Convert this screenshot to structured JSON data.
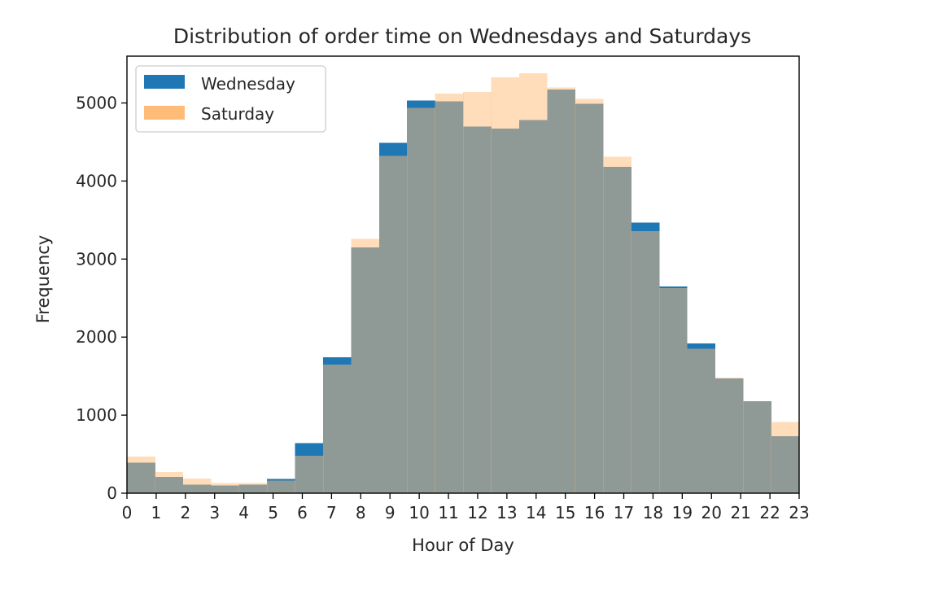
{
  "chart_data": {
    "type": "bar",
    "title": "Distribution of order time on Wednesdays and Saturdays",
    "xlabel": "Hour of Day",
    "ylabel": "Frequency",
    "xlim": [
      0,
      23
    ],
    "ylim": [
      0,
      5600
    ],
    "x_ticks": [
      "0",
      "1",
      "2",
      "3",
      "4",
      "5",
      "6",
      "7",
      "8",
      "9",
      "10",
      "11",
      "12",
      "13",
      "14",
      "15",
      "16",
      "17",
      "18",
      "19",
      "20",
      "21",
      "22",
      "23"
    ],
    "y_ticks": [
      "0",
      "1000",
      "2000",
      "3000",
      "4000",
      "5000"
    ],
    "bin_edges": [
      0,
      0.9583,
      1.9167,
      2.875,
      3.8333,
      4.7917,
      5.75,
      6.7083,
      7.6667,
      8.625,
      9.5833,
      10.5417,
      11.5,
      12.4583,
      13.4167,
      14.375,
      15.3333,
      16.2917,
      17.25,
      18.2083,
      19.1667,
      20.125,
      21.0833,
      22.0417,
      23
    ],
    "grid": false,
    "legend_position": "top-left",
    "series": [
      {
        "name": "Wednesday",
        "color": "#1f77b4",
        "values": [
          390,
          210,
          110,
          100,
          110,
          180,
          640,
          1740,
          3150,
          4490,
          5030,
          5020,
          4700,
          4670,
          4780,
          5170,
          4990,
          4180,
          3470,
          2650,
          1920,
          1470,
          1180,
          730
        ]
      },
      {
        "name": "Saturday",
        "color": "#ffbb78",
        "values": [
          470,
          270,
          190,
          130,
          130,
          160,
          480,
          1650,
          3260,
          4320,
          4940,
          5120,
          5140,
          5330,
          5380,
          5200,
          5050,
          4310,
          3360,
          2630,
          1850,
          1480,
          1180,
          910
        ]
      }
    ],
    "overlap_color": "#8b7761"
  }
}
